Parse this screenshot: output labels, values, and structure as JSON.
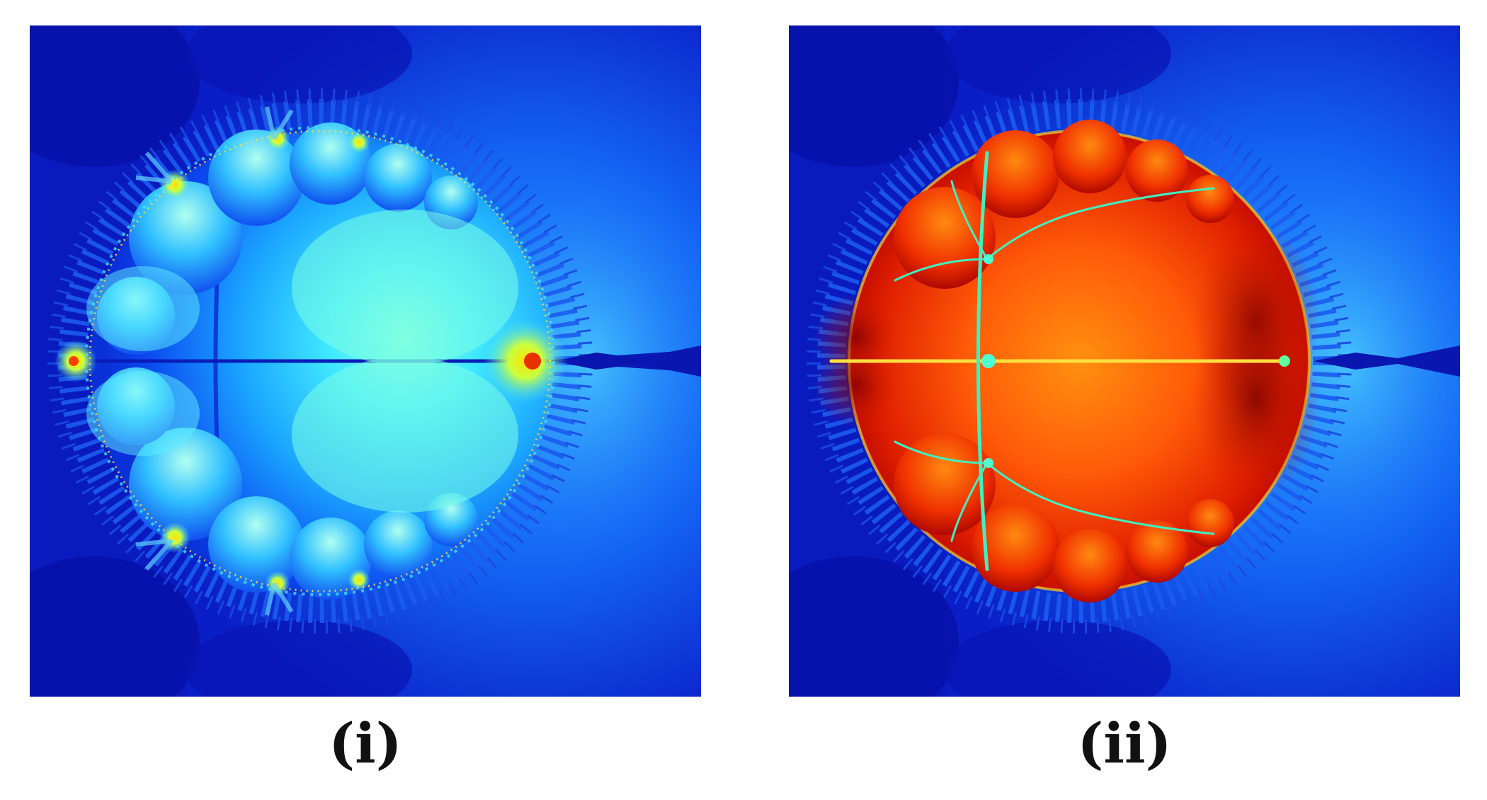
{
  "figure": {
    "panels": [
      {
        "caption": "(i)",
        "image": "fractal-basin-plot",
        "colormap": "jet",
        "dominant_colors": [
          "#0a14c8",
          "#1470ff",
          "#30c8ff",
          "#70ffe0",
          "#fff040"
        ]
      },
      {
        "caption": "(ii)",
        "image": "fractal-basin-plot",
        "colormap": "jet",
        "dominant_colors": [
          "#0a14c8",
          "#1470ff",
          "#40ffd0",
          "#ff6010",
          "#c00000"
        ]
      }
    ]
  }
}
